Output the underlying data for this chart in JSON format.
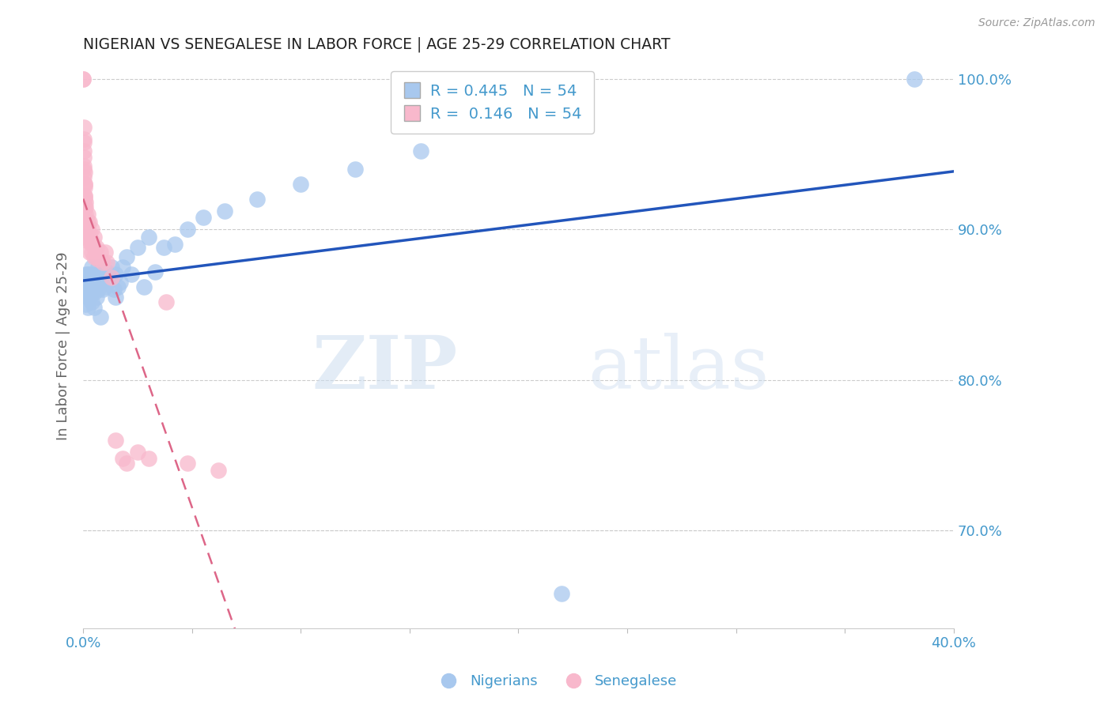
{
  "title": "NIGERIAN VS SENEGALESE IN LABOR FORCE | AGE 25-29 CORRELATION CHART",
  "source": "Source: ZipAtlas.com",
  "ylabel": "In Labor Force | Age 25-29",
  "nigerian_color": "#a8c8ee",
  "senegalese_color": "#f8b8cc",
  "nigerian_line_color": "#2255bb",
  "senegalese_line_color": "#dd6688",
  "axis_color": "#4499cc",
  "grid_color": "#cccccc",
  "watermark_zip": "ZIP",
  "watermark_atlas": "atlas",
  "nigerian_x": [
    0.001,
    0.001,
    0.001,
    0.001,
    0.002,
    0.002,
    0.002,
    0.002,
    0.002,
    0.003,
    0.003,
    0.003,
    0.004,
    0.004,
    0.004,
    0.004,
    0.005,
    0.005,
    0.005,
    0.006,
    0.006,
    0.007,
    0.007,
    0.008,
    0.008,
    0.009,
    0.009,
    0.01,
    0.011,
    0.012,
    0.013,
    0.014,
    0.015,
    0.015,
    0.016,
    0.017,
    0.018,
    0.02,
    0.022,
    0.025,
    0.028,
    0.03,
    0.033,
    0.037,
    0.042,
    0.048,
    0.055,
    0.065,
    0.08,
    0.1,
    0.125,
    0.155,
    0.22,
    0.382
  ],
  "nigerian_y": [
    0.87,
    0.865,
    0.858,
    0.85,
    0.862,
    0.855,
    0.848,
    0.87,
    0.858,
    0.862,
    0.87,
    0.855,
    0.868,
    0.86,
    0.852,
    0.875,
    0.858,
    0.862,
    0.848,
    0.87,
    0.855,
    0.875,
    0.86,
    0.865,
    0.842,
    0.86,
    0.87,
    0.862,
    0.872,
    0.868,
    0.875,
    0.86,
    0.87,
    0.855,
    0.862,
    0.865,
    0.875,
    0.882,
    0.87,
    0.888,
    0.862,
    0.895,
    0.872,
    0.888,
    0.89,
    0.9,
    0.908,
    0.912,
    0.92,
    0.93,
    0.94,
    0.952,
    0.658,
    1.0
  ],
  "senegalese_x": [
    0.0001,
    0.0001,
    0.0002,
    0.0002,
    0.0002,
    0.0003,
    0.0003,
    0.0003,
    0.0004,
    0.0004,
    0.0005,
    0.0005,
    0.0006,
    0.0006,
    0.0007,
    0.0007,
    0.0008,
    0.0008,
    0.0009,
    0.001,
    0.001,
    0.001,
    0.001,
    0.001,
    0.002,
    0.002,
    0.002,
    0.002,
    0.003,
    0.003,
    0.003,
    0.003,
    0.004,
    0.004,
    0.004,
    0.005,
    0.005,
    0.005,
    0.006,
    0.006,
    0.007,
    0.008,
    0.009,
    0.01,
    0.011,
    0.013,
    0.015,
    0.018,
    0.02,
    0.025,
    0.03,
    0.038,
    0.048,
    0.062
  ],
  "senegalese_y": [
    1.0,
    1.0,
    0.968,
    0.96,
    0.958,
    0.952,
    0.948,
    0.94,
    0.942,
    0.935,
    0.938,
    0.93,
    0.93,
    0.922,
    0.928,
    0.92,
    0.922,
    0.915,
    0.918,
    0.915,
    0.91,
    0.905,
    0.9,
    0.895,
    0.91,
    0.905,
    0.898,
    0.892,
    0.905,
    0.898,
    0.892,
    0.885,
    0.9,
    0.892,
    0.885,
    0.895,
    0.888,
    0.882,
    0.888,
    0.882,
    0.88,
    0.885,
    0.878,
    0.885,
    0.878,
    0.868,
    0.76,
    0.748,
    0.745,
    0.752,
    0.748,
    0.852,
    0.745,
    0.74
  ],
  "xlim": [
    0.0,
    0.4
  ],
  "ylim": [
    0.635,
    1.01
  ],
  "yticks": [
    0.7,
    0.8,
    0.9,
    1.0
  ],
  "ytick_labels_right": [
    "70.0%",
    "80.0%",
    "90.0%",
    "100.0%"
  ],
  "extra_ytick": 0.4,
  "xticks": [
    0.0,
    0.05,
    0.1,
    0.15,
    0.2,
    0.25,
    0.3,
    0.35,
    0.4
  ],
  "xtick_labels": [
    "0.0%",
    "",
    "",
    "",
    "",
    "",
    "",
    "",
    "40.0%"
  ]
}
